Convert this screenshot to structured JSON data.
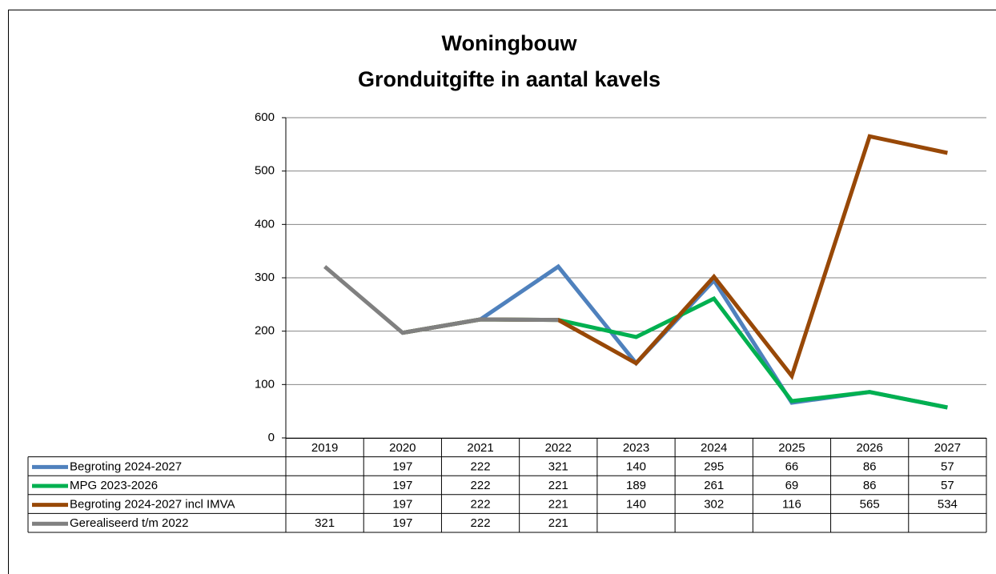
{
  "chart_data": {
    "type": "line",
    "title": [
      "Woningbouw",
      "Gronduitgifte in aantal kavels"
    ],
    "categories": [
      "2019",
      "2020",
      "2021",
      "2022",
      "2023",
      "2024",
      "2025",
      "2026",
      "2027"
    ],
    "series": [
      {
        "name": "Begroting 2024-2027",
        "color": "#4f81bd",
        "values": [
          null,
          197,
          222,
          321,
          140,
          295,
          66,
          86,
          57
        ]
      },
      {
        "name": "MPG 2023-2026",
        "color": "#00b050",
        "values": [
          null,
          197,
          222,
          221,
          189,
          261,
          69,
          86,
          57
        ]
      },
      {
        "name": "Begroting 2024-2027 incl IMVA",
        "color": "#984807",
        "values": [
          null,
          197,
          222,
          221,
          140,
          302,
          116,
          565,
          534
        ]
      },
      {
        "name": "Gerealiseerd t/m 2022",
        "color": "#808080",
        "values": [
          321,
          197,
          222,
          221,
          null,
          null,
          null,
          null,
          null
        ]
      }
    ],
    "ylim": [
      0,
      600
    ],
    "yticks": [
      0,
      100,
      200,
      300,
      400,
      500,
      600
    ],
    "grid": true,
    "data_table": true
  }
}
